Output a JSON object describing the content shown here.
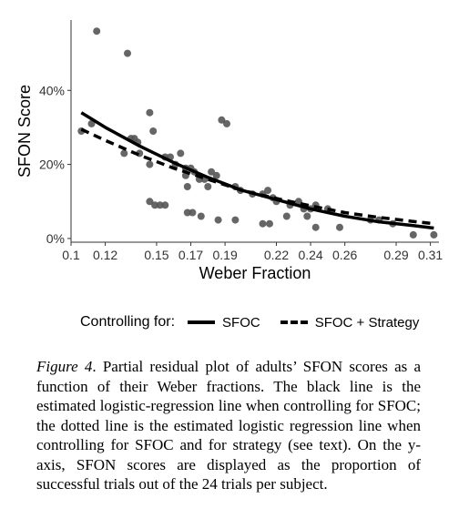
{
  "chart_data": {
    "type": "scatter",
    "xlabel": "Weber Fraction",
    "ylabel": "SFON Score",
    "xlim": [
      0.1,
      0.315
    ],
    "ylim": [
      -0.01,
      0.59
    ],
    "x_ticks": [
      0.1,
      0.12,
      0.15,
      0.17,
      0.19,
      0.22,
      0.24,
      0.26,
      0.29,
      0.31
    ],
    "x_tick_labels": [
      "0.1",
      "0.12",
      "0.15",
      "0.17",
      "0.19",
      "0.22",
      "0.24",
      "0.26",
      "0.29",
      "0.31"
    ],
    "y_ticks": [
      0,
      0.2,
      0.4
    ],
    "y_tick_labels": [
      "0%",
      "20%",
      "40%"
    ],
    "grid": false,
    "legend_position": "bottom",
    "legend_title": "Controlling for:",
    "points": [
      [
        0.115,
        0.56
      ],
      [
        0.133,
        0.5
      ],
      [
        0.106,
        0.29
      ],
      [
        0.112,
        0.31
      ],
      [
        0.135,
        0.27
      ],
      [
        0.137,
        0.27
      ],
      [
        0.139,
        0.26
      ],
      [
        0.131,
        0.23
      ],
      [
        0.146,
        0.34
      ],
      [
        0.148,
        0.29
      ],
      [
        0.14,
        0.23
      ],
      [
        0.146,
        0.2
      ],
      [
        0.155,
        0.22
      ],
      [
        0.158,
        0.22
      ],
      [
        0.161,
        0.2
      ],
      [
        0.164,
        0.23
      ],
      [
        0.167,
        0.19
      ],
      [
        0.17,
        0.19
      ],
      [
        0.172,
        0.18
      ],
      [
        0.167,
        0.17
      ],
      [
        0.175,
        0.16
      ],
      [
        0.178,
        0.16
      ],
      [
        0.182,
        0.18
      ],
      [
        0.185,
        0.17
      ],
      [
        0.168,
        0.14
      ],
      [
        0.18,
        0.14
      ],
      [
        0.188,
        0.32
      ],
      [
        0.191,
        0.31
      ],
      [
        0.196,
        0.14
      ],
      [
        0.199,
        0.13
      ],
      [
        0.206,
        0.12
      ],
      [
        0.212,
        0.12
      ],
      [
        0.215,
        0.13
      ],
      [
        0.218,
        0.11
      ],
      [
        0.22,
        0.1
      ],
      [
        0.228,
        0.09
      ],
      [
        0.233,
        0.1
      ],
      [
        0.236,
        0.08
      ],
      [
        0.24,
        0.08
      ],
      [
        0.243,
        0.09
      ],
      [
        0.25,
        0.08
      ],
      [
        0.146,
        0.1
      ],
      [
        0.149,
        0.09
      ],
      [
        0.152,
        0.09
      ],
      [
        0.155,
        0.09
      ],
      [
        0.168,
        0.07
      ],
      [
        0.171,
        0.07
      ],
      [
        0.176,
        0.06
      ],
      [
        0.186,
        0.05
      ],
      [
        0.196,
        0.05
      ],
      [
        0.212,
        0.04
      ],
      [
        0.216,
        0.04
      ],
      [
        0.226,
        0.06
      ],
      [
        0.238,
        0.06
      ],
      [
        0.243,
        0.03
      ],
      [
        0.257,
        0.03
      ],
      [
        0.275,
        0.05
      ],
      [
        0.28,
        0.05
      ],
      [
        0.288,
        0.04
      ],
      [
        0.3,
        0.01
      ],
      [
        0.312,
        0.01
      ]
    ],
    "series": [
      {
        "name": "SFOC",
        "style": "solid",
        "x": [
          0.106,
          0.12,
          0.14,
          0.16,
          0.18,
          0.2,
          0.22,
          0.24,
          0.26,
          0.28,
          0.3,
          0.312
        ],
        "y": [
          0.34,
          0.3,
          0.25,
          0.205,
          0.165,
          0.13,
          0.105,
          0.08,
          0.06,
          0.045,
          0.035,
          0.028
        ]
      },
      {
        "name": "SFOC + Strategy",
        "style": "dashed",
        "x": [
          0.106,
          0.12,
          0.14,
          0.16,
          0.18,
          0.2,
          0.22,
          0.24,
          0.26,
          0.28,
          0.3,
          0.312
        ],
        "y": [
          0.295,
          0.265,
          0.225,
          0.19,
          0.16,
          0.13,
          0.108,
          0.088,
          0.07,
          0.057,
          0.046,
          0.04
        ]
      }
    ],
    "colors": {
      "points": "#555555",
      "lines": "#000000",
      "axis": "#333333"
    }
  },
  "caption": {
    "label": "Figure 4",
    "text": ". Partial residual plot of adults’ SFON scores as a function of their Weber fractions. The black line is the estimated logistic-regression line when controlling for SFOC; the dotted line is the estimated logistic regression line when controlling for SFOC and for strategy (see text). On the y-axis, SFON scores are displayed as the proportion of successful trials out of the 24 trials per subject."
  }
}
